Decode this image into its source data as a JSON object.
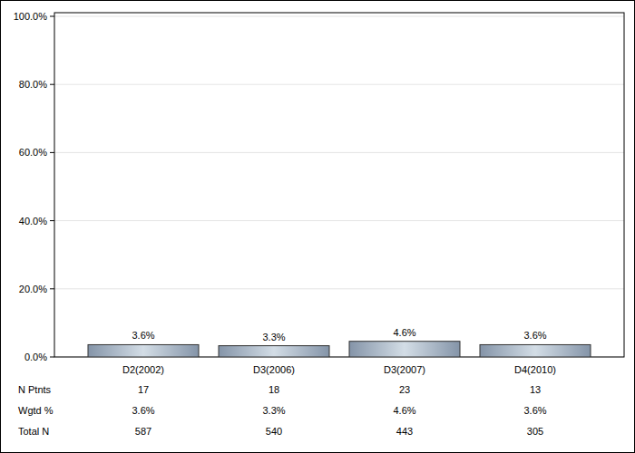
{
  "chart_data": {
    "type": "bar",
    "categories": [
      "D2(2002)",
      "D3(2006)",
      "D3(2007)",
      "D4(2010)"
    ],
    "values": [
      3.6,
      3.3,
      4.6,
      3.6
    ],
    "value_labels": [
      "3.6%",
      "3.3%",
      "4.6%",
      "3.6%"
    ],
    "data_labels": true,
    "ylim": [
      0,
      100
    ],
    "yticks": [
      {
        "value": 0,
        "label": "0.0%"
      },
      {
        "value": 20,
        "label": "20.0%"
      },
      {
        "value": 40,
        "label": "40.0%"
      },
      {
        "value": 60,
        "label": "60.0%"
      },
      {
        "value": 80,
        "label": "80.0%"
      },
      {
        "value": 100,
        "label": "100.0%"
      }
    ],
    "grid": true,
    "table": {
      "rows": [
        {
          "label": "N Ptnts",
          "values": [
            17,
            18,
            23,
            13
          ]
        },
        {
          "label": "Wgtd %",
          "values": [
            "3.6%",
            "3.3%",
            "4.6%",
            "3.6%"
          ]
        },
        {
          "label": "Total N",
          "values": [
            587,
            540,
            443,
            305
          ]
        }
      ]
    }
  }
}
